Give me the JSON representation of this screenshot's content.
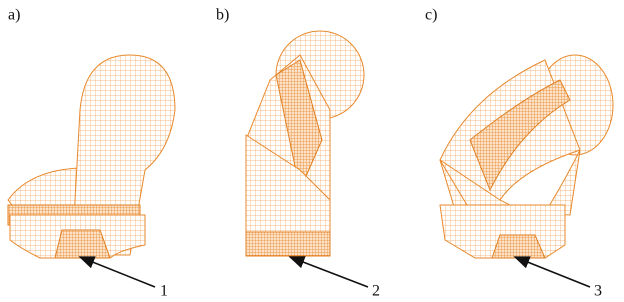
{
  "panels": [
    {
      "label": "a)",
      "callout": "1"
    },
    {
      "label": "b)",
      "callout": "2"
    },
    {
      "label": "c)",
      "callout": "3"
    }
  ]
}
